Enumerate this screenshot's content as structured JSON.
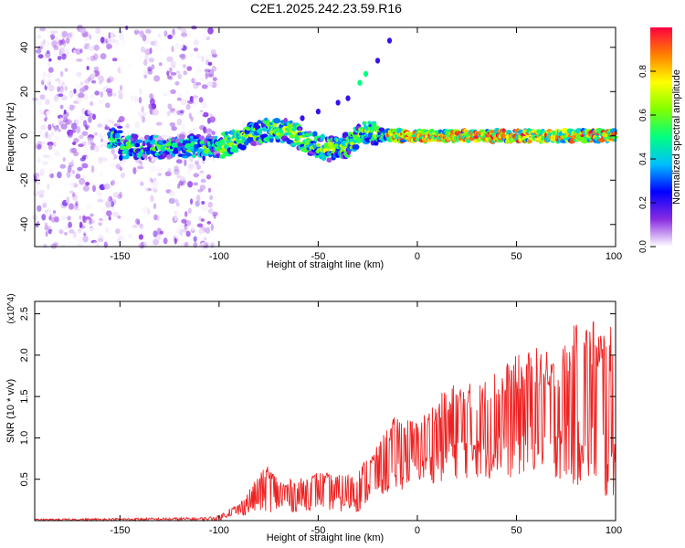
{
  "title": "C2E1.2025.242.23.59.R16",
  "chart_data": [
    {
      "type": "heatmap",
      "xlabel": "Height of straight line (km)",
      "ylabel": "Frequency (Hz)",
      "xlim": [
        -193,
        100
      ],
      "ylim": [
        -50,
        49
      ],
      "xticks": [
        -150,
        -100,
        -50,
        0,
        50,
        100
      ],
      "yticks": [
        -40,
        -20,
        0,
        20,
        40
      ],
      "colorbar": {
        "label": "Normalized spectral amplitude",
        "range": [
          0,
          1
        ],
        "ticks": [
          "0.0",
          "0.2",
          "0.4",
          "0.6",
          "0.8"
        ],
        "tick_values": [
          0.0,
          0.2,
          0.4,
          0.6,
          0.8
        ],
        "colors": [
          "#ffffff",
          "#8a2be2",
          "#0000ff",
          "#00bfff",
          "#00ff80",
          "#80ff00",
          "#ffff00",
          "#ff8000",
          "#ff0040"
        ]
      },
      "noise_region_x": [
        -193,
        -102
      ],
      "ridge": [
        {
          "x": -150,
          "f": -5
        },
        {
          "x": -120,
          "f": -5
        },
        {
          "x": -100,
          "f": -5
        },
        {
          "x": -85,
          "f": 0
        },
        {
          "x": -75,
          "f": 3
        },
        {
          "x": -65,
          "f": 2
        },
        {
          "x": -55,
          "f": -3
        },
        {
          "x": -45,
          "f": -6
        },
        {
          "x": -35,
          "f": -4
        },
        {
          "x": -25,
          "f": 2
        },
        {
          "x": -15,
          "f": 0
        },
        {
          "x": 0,
          "f": 0
        },
        {
          "x": 50,
          "f": 0
        },
        {
          "x": 100,
          "f": 0
        }
      ],
      "echo_trace": [
        {
          "x": -58,
          "f": 8
        },
        {
          "x": -50,
          "f": 11
        },
        {
          "x": -40,
          "f": 15
        },
        {
          "x": -35,
          "f": 17
        },
        {
          "x": -29,
          "f": 24
        },
        {
          "x": -26,
          "f": 28
        },
        {
          "x": -20,
          "f": 34
        },
        {
          "x": -14,
          "f": 43
        }
      ]
    },
    {
      "type": "line",
      "xlabel": "Height of straight line (km)",
      "ylabel": "SNR (10 * v/v)",
      "scale_note": "(x10^4)",
      "xlim": [
        -193,
        100
      ],
      "ylim": [
        0,
        2.65
      ],
      "xticks": [
        -150,
        -100,
        -50,
        0,
        50,
        100
      ],
      "yticks": [
        "0.5",
        "1.0",
        "1.5",
        "2.0",
        "2.5"
      ],
      "ytick_values": [
        0.5,
        1.0,
        1.5,
        2.0,
        2.5
      ],
      "color": "#ee2222",
      "envelope": {
        "x": [
          -193,
          -110,
          -100,
          -95,
          -90,
          -80,
          -75,
          -70,
          -60,
          -50,
          -40,
          -30,
          -25,
          -20,
          -15,
          -10,
          -5,
          0,
          10,
          20,
          30,
          40,
          50,
          60,
          70,
          80,
          90,
          95,
          100
        ],
        "upper": [
          0.02,
          0.04,
          0.06,
          0.15,
          0.2,
          0.55,
          0.7,
          0.5,
          0.5,
          0.6,
          0.55,
          0.6,
          0.8,
          0.9,
          1.15,
          1.3,
          1.25,
          1.2,
          1.5,
          1.7,
          1.65,
          1.85,
          2.0,
          2.1,
          2.0,
          2.4,
          2.5,
          2.4,
          2.3
        ],
        "lower": [
          0.0,
          0.0,
          0.0,
          0.05,
          0.05,
          0.1,
          0.1,
          0.1,
          0.1,
          0.15,
          0.1,
          0.1,
          0.2,
          0.3,
          0.3,
          0.35,
          0.4,
          0.45,
          0.45,
          0.5,
          0.5,
          0.5,
          0.5,
          0.6,
          0.5,
          0.4,
          0.35,
          0.15,
          0.3
        ]
      }
    }
  ]
}
